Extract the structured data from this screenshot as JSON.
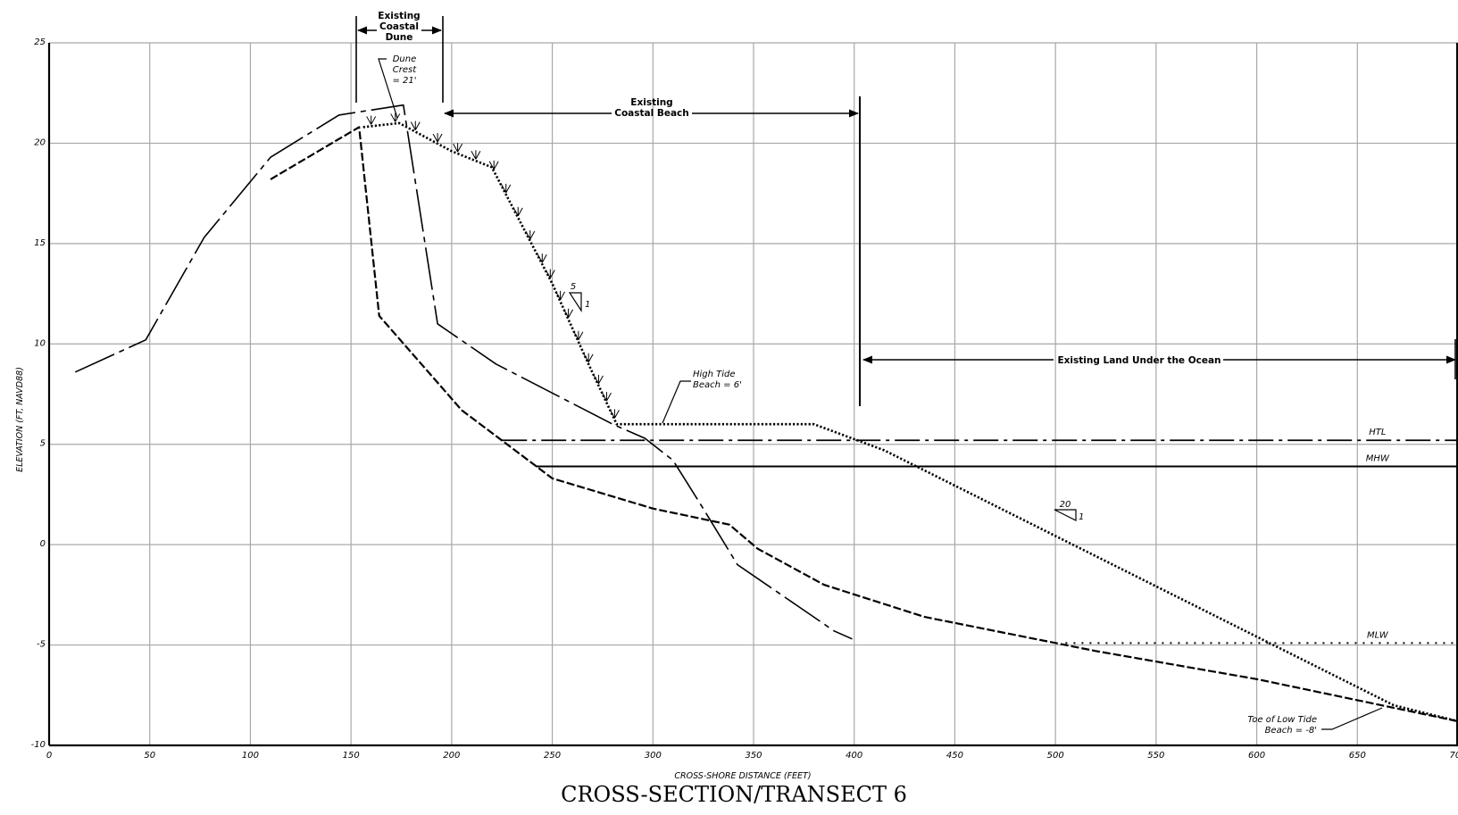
{
  "chart_data": {
    "type": "line",
    "title": "CROSS-SECTION/TRANSECT 6",
    "xlabel": "CROSS-SHORE DISTANCE (FEET)",
    "ylabel": "ELEVATION (FT, NAVD88)",
    "xlim": [
      0,
      700
    ],
    "ylim": [
      -10,
      25
    ],
    "x_ticks": [
      0,
      50,
      100,
      150,
      200,
      250,
      300,
      350,
      400,
      450,
      500,
      550,
      600,
      650,
      700
    ],
    "y_ticks": [
      -10,
      -5,
      0,
      5,
      10,
      15,
      20,
      25
    ],
    "x_tick_labels": [
      "0",
      "50",
      "100",
      "150",
      "200",
      "250",
      "300",
      "350",
      "400",
      "450",
      "500",
      "550",
      "600",
      "650",
      "700"
    ],
    "y_tick_labels": [
      "-10",
      "-5",
      "0",
      "5",
      "10",
      "15",
      "20",
      "25"
    ],
    "grid": true,
    "series": [
      {
        "style": "long-dash-dot",
        "points": [
          [
            13,
            8.6
          ],
          [
            48,
            10.2
          ],
          [
            77,
            15.3
          ],
          [
            110,
            19.3
          ],
          [
            144,
            21.4
          ],
          [
            176,
            21.9
          ],
          [
            193,
            11.0
          ],
          [
            222,
            9.0
          ],
          [
            280,
            6.0
          ],
          [
            296,
            5.3
          ],
          [
            310,
            4.2
          ],
          [
            325,
            1.8
          ],
          [
            342,
            -1.0
          ],
          [
            390,
            -4.3
          ],
          [
            399,
            -4.7
          ]
        ]
      },
      {
        "style": "dashed",
        "points": [
          [
            110,
            18.2
          ],
          [
            154,
            20.8
          ],
          [
            164,
            11.4
          ],
          [
            205,
            6.7
          ],
          [
            250,
            3.3
          ],
          [
            300,
            1.8
          ],
          [
            338,
            1.0
          ],
          [
            352,
            -0.2
          ],
          [
            385,
            -2.0
          ],
          [
            435,
            -3.6
          ],
          [
            520,
            -5.3
          ],
          [
            600,
            -6.7
          ],
          [
            700,
            -8.8
          ]
        ]
      },
      {
        "style": "dotted",
        "points": [
          [
            156,
            20.8
          ],
          [
            174,
            21.0
          ],
          [
            200,
            19.6
          ],
          [
            220,
            18.8
          ],
          [
            250,
            13.0
          ],
          [
            268,
            9.0
          ],
          [
            282,
            6.0
          ],
          [
            380,
            6.0
          ],
          [
            415,
            4.7
          ],
          [
            668,
            -8.0
          ],
          [
            700,
            -8.8
          ]
        ]
      }
    ],
    "reference_lines": [
      {
        "label": "HTL",
        "y": 5.2,
        "x_start": 225,
        "x_end": 700,
        "style": "dash-dot"
      },
      {
        "label": "MHW",
        "y": 3.9,
        "x_start": 242,
        "x_end": 700,
        "style": "solid"
      },
      {
        "label": "MLW",
        "y": -4.9,
        "x_start": 505,
        "x_end": 700,
        "style": "dotted"
      }
    ],
    "annotations": {
      "existing_coastal_dune": [
        "Existing",
        "Coastal",
        "Dune"
      ],
      "dune_crest": [
        "Dune",
        "Crest",
        "= 21'"
      ],
      "existing_coastal_beach": [
        "Existing",
        "Coastal Beach"
      ],
      "high_tide_beach": [
        "High Tide",
        "Beach = 6'"
      ],
      "existing_land_under_ocean": "Existing Land Under the Ocean",
      "toe_of_low_tide_beach": [
        "Toe of Low Tide",
        "Beach = -8'"
      ],
      "slope_steep": {
        "run": "5",
        "rise": "1"
      },
      "slope_gentle": {
        "run": "20",
        "rise": "1"
      }
    }
  }
}
